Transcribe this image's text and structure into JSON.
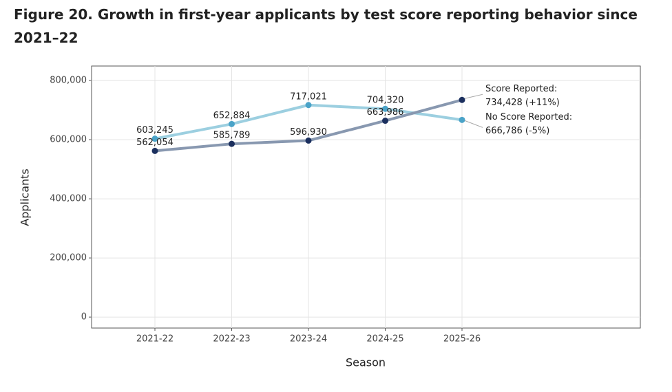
{
  "chart_data": {
    "type": "line",
    "title": "Figure 20. Growth in first-year applicants by test score reporting behavior since 2021–22",
    "xlabel": "Season",
    "ylabel": "Applicants",
    "categories": [
      "2021-22",
      "2022-23",
      "2023-24",
      "2024-25",
      "2025-26"
    ],
    "series": [
      {
        "name": "No Score Reported",
        "color": "#9ccfe0",
        "marker_color": "#4aa3c8",
        "values": [
          603245,
          652884,
          717021,
          704320,
          666786
        ],
        "value_labels": [
          "603,245",
          "652,884",
          "717,021",
          "704,320",
          null
        ],
        "annotation": [
          "No Score Reported:",
          "666,786 (-5%)"
        ]
      },
      {
        "name": "Score Reported",
        "color": "#8898b0",
        "marker_color": "#1b2f5e",
        "values": [
          562054,
          585789,
          596930,
          663986,
          734428
        ],
        "value_labels": [
          "562,054",
          "585,789",
          "596,930",
          "663,986",
          null
        ],
        "annotation": [
          "Score Reported:",
          "734,428 (+11%)"
        ]
      }
    ],
    "ylim": [
      -37000,
      849000
    ],
    "yticks": [
      {
        "value": 0,
        "label": "0"
      },
      {
        "value": 200000,
        "label": "200,000"
      },
      {
        "value": 400000,
        "label": "400,000"
      },
      {
        "value": 600000,
        "label": "600,000"
      },
      {
        "value": 800000,
        "label": "800,000"
      }
    ],
    "grid": true
  }
}
